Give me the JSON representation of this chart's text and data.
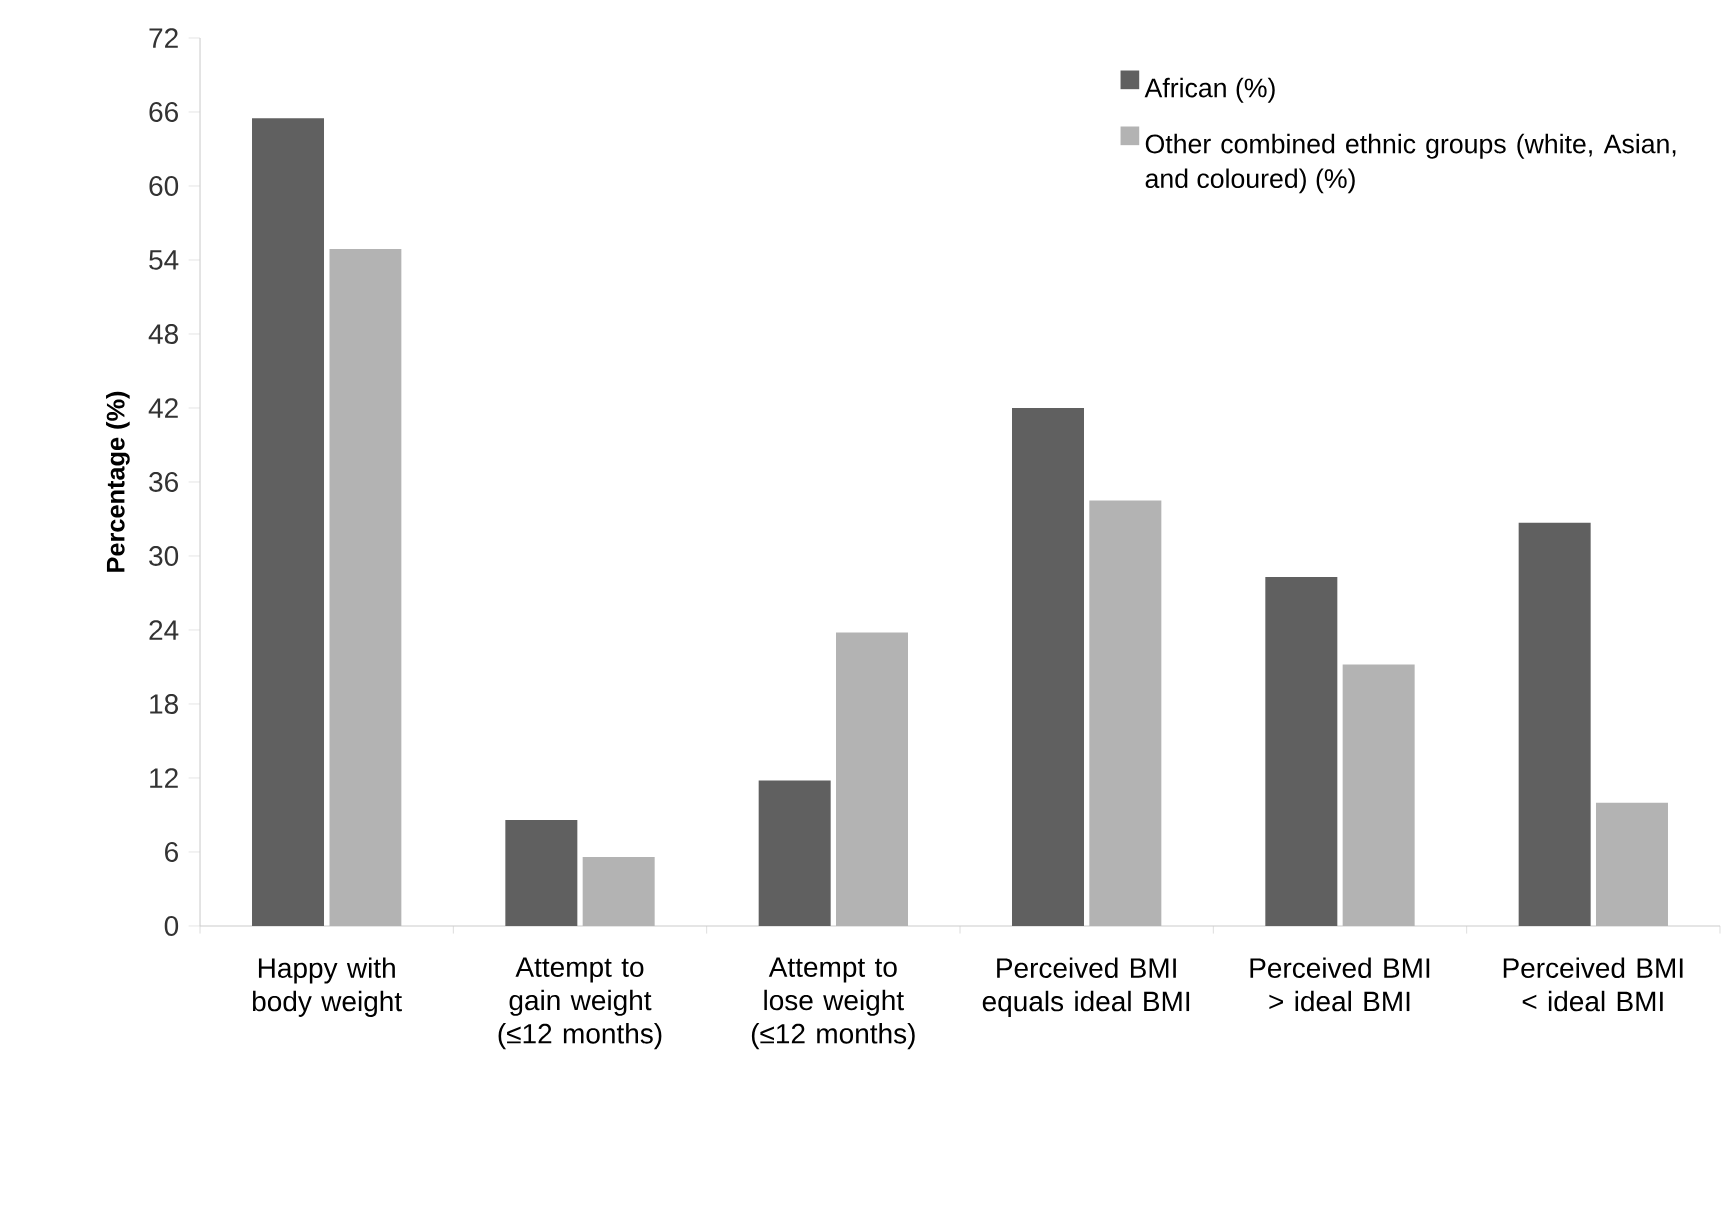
{
  "chart_data": {
    "type": "bar",
    "ylabel": "Percentage (%)",
    "categories": [
      "Happy with body weight",
      "Attempt to gain weight (≤12 months)",
      "Attempt to lose weight (≤12 months)",
      "Perceived BMI equals ideal BMI",
      "Perceived BMI > ideal BMI",
      "Perceived BMI < ideal BMI"
    ],
    "series": [
      {
        "name": "African (%)",
        "color": "#606060",
        "values": [
          65.5,
          8.6,
          11.8,
          42.0,
          28.3,
          32.7
        ]
      },
      {
        "name": "Other combined ethnic groups (white, Asian, and coloured) (%)",
        "color": "#b3b3b3",
        "values": [
          54.9,
          5.6,
          23.8,
          34.5,
          21.2,
          10.0
        ]
      }
    ],
    "ylim": [
      0,
      72
    ],
    "yticks": [
      0,
      6,
      12,
      18,
      24,
      30,
      36,
      42,
      48,
      54,
      60,
      66,
      72
    ],
    "legend": "top right",
    "grid": false
  }
}
